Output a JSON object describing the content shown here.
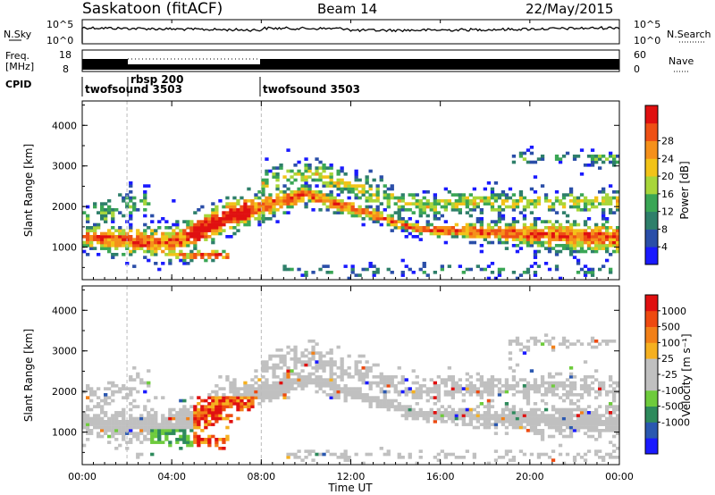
{
  "header": {
    "station": "Saskatoon (fitACF)",
    "beam": "Beam 14",
    "date": "22/May/2015"
  },
  "strips": {
    "nsky_label": "N.Sky",
    "nsky_ticks": [
      "10^5",
      "10^0"
    ],
    "nsearch_label": "N.Search",
    "freq_label_line1": "Freq.",
    "freq_label_line2": "[MHz]",
    "freq_ticks": [
      "18",
      "8"
    ],
    "nave_label": "Nave",
    "nave_ticks": [
      "60",
      "0"
    ],
    "cpid_label": "CPID",
    "cpid_segments": [
      {
        "name": "twofsound 3503",
        "start_hour": 0
      },
      {
        "name": "rbsp 200",
        "start_hour": 2
      },
      {
        "name": "twofsound 3503",
        "start_hour": 8
      }
    ]
  },
  "chart_data": [
    {
      "type": "heatmap",
      "name": "power-panel",
      "ylabel": "Slant Range [km]",
      "xlabel": "",
      "ylim": [
        200,
        4600
      ],
      "yticks": [
        "1000",
        "2000",
        "3000",
        "4000"
      ],
      "xlim_hours": [
        0,
        24
      ],
      "colorbar": {
        "label": "Power [dB]",
        "ticks": [
          "4",
          "8",
          "12",
          "16",
          "20",
          "24",
          "28"
        ],
        "colors": [
          "#1a1aff",
          "#2a4ea8",
          "#2e7f6a",
          "#3aa655",
          "#a8d63a",
          "#f2c318",
          "#f5901a",
          "#ee5015",
          "#e01010"
        ]
      }
    },
    {
      "type": "heatmap",
      "name": "velocity-panel",
      "ylabel": "Slant Range [km]",
      "xlabel": "Time UT",
      "ylim": [
        200,
        4600
      ],
      "yticks": [
        "1000",
        "2000",
        "3000",
        "4000"
      ],
      "xlim_hours": [
        0,
        24
      ],
      "xticks": [
        "00:00",
        "04:00",
        "08:00",
        "12:00",
        "16:00",
        "20:00",
        "00:00"
      ],
      "colorbar": {
        "label": "Velocity [m s⁻¹]",
        "ticks": [
          "1000",
          "500",
          "100",
          "25",
          "-25",
          "-100",
          "-500",
          "-1000"
        ],
        "colors": [
          "#1a1aff",
          "#2a58b0",
          "#2e8a5c",
          "#6ecb3c",
          "#c0c0c0",
          "#c0c0c0",
          "#f5b020",
          "#f28018",
          "#ee4a10",
          "#e01010"
        ]
      }
    }
  ]
}
